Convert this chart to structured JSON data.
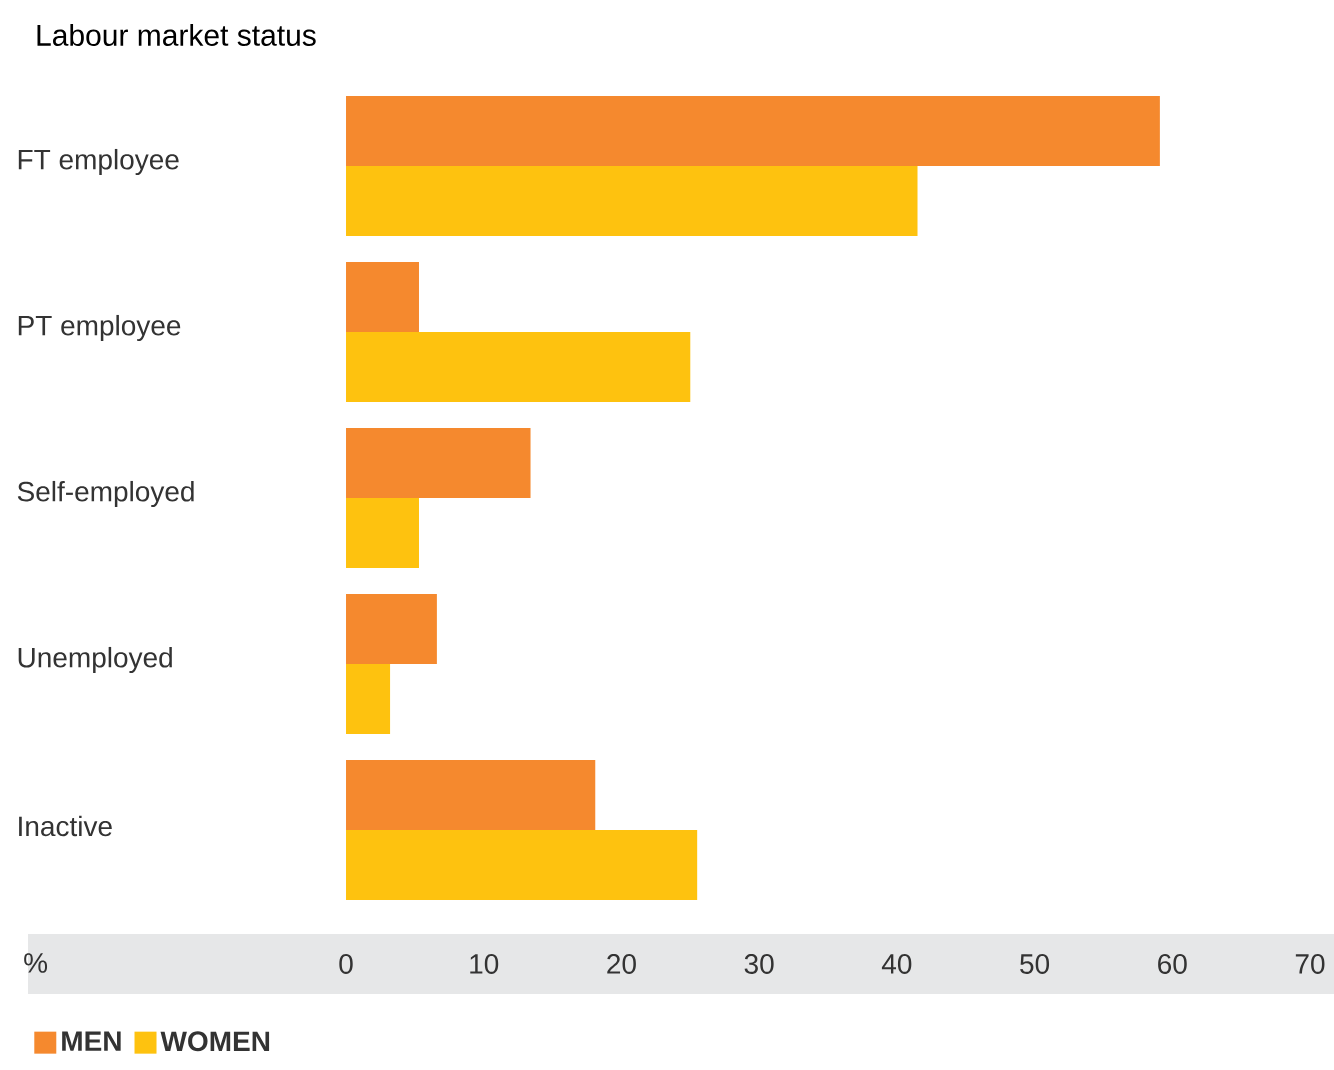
{
  "chart_data": {
    "type": "bar",
    "orientation": "horizontal",
    "title": "Labour market status",
    "xlabel": "%",
    "categories": [
      "FT employee",
      "PT employee",
      "Self-employed",
      "Unemployed",
      "Inactive"
    ],
    "series": [
      {
        "name": "MEN",
        "color": "#f5892e",
        "values": [
          59.1,
          5.3,
          13.4,
          6.6,
          18.1
        ]
      },
      {
        "name": "WOMEN",
        "color": "#fec20f",
        "values": [
          41.5,
          25,
          5.3,
          3.2,
          25.5
        ]
      }
    ],
    "xlim": [
      0,
      70
    ],
    "xticks": [
      0,
      10,
      20,
      30,
      40,
      50,
      60,
      70
    ],
    "grid": false,
    "legend": "bottom left"
  }
}
